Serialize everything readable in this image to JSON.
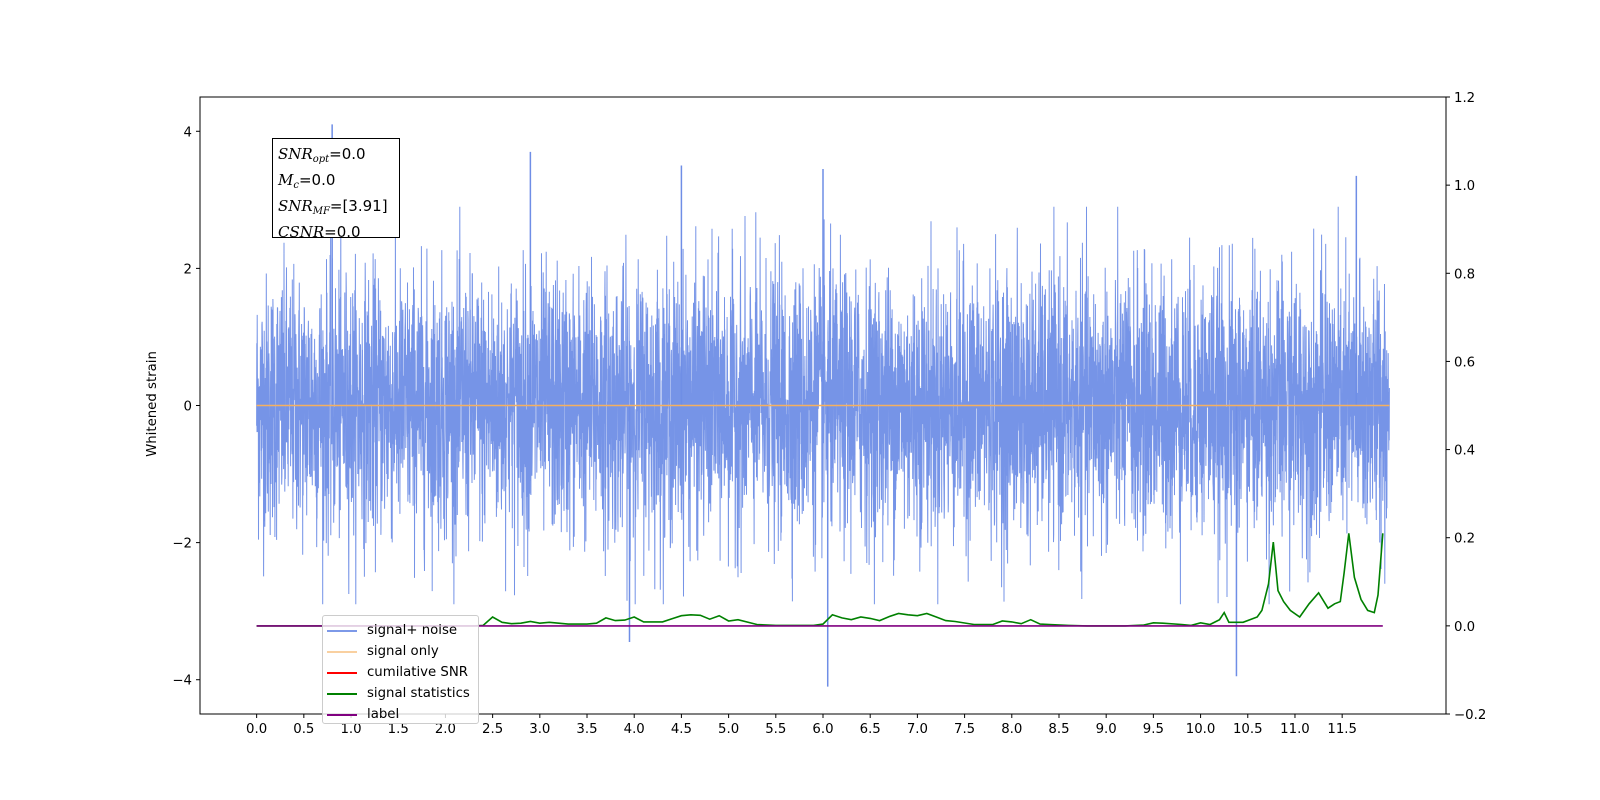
{
  "chart_data": {
    "type": "line",
    "title": "",
    "xlabel": "",
    "ylabel": "Whitened strain",
    "xlim": [
      -0.6,
      12.6
    ],
    "ylim": [
      -4.5,
      4.5
    ],
    "y2lim": [
      -0.2,
      1.2
    ],
    "x_ticks": [
      "0.0",
      "0.5",
      "1.0",
      "1.5",
      "2.0",
      "2.5",
      "3.0",
      "3.5",
      "4.0",
      "4.5",
      "5.0",
      "5.5",
      "6.0",
      "6.5",
      "7.0",
      "7.5",
      "8.0",
      "8.5",
      "9.0",
      "9.5",
      "10.0",
      "10.5",
      "11.0",
      "11.5"
    ],
    "y_ticks": [
      "4",
      "2",
      "0",
      "−2",
      "−4"
    ],
    "y2_ticks": [
      "1.2",
      "1.0",
      "0.8",
      "0.6",
      "0.4",
      "0.2",
      "0.0",
      "−0.2"
    ],
    "grid": false,
    "legend_position": "lower-left",
    "annotation": {
      "snr_opt": "=0.0",
      "mc": "=0.0",
      "snr_mf": "=[3.91]",
      "csnr": "=0.0"
    },
    "series": [
      {
        "name": "signal+ noise",
        "color": "#6f8ee6",
        "axis": "left",
        "x_range": [
          0.0,
          12.0
        ],
        "description": "whitened noise, amplitude roughly -2.5 to 2.5 with spikes",
        "peaks": [
          [
            0.8,
            4.1
          ],
          [
            2.9,
            3.7
          ],
          [
            4.5,
            3.5
          ],
          [
            6.0,
            3.45
          ],
          [
            11.65,
            3.35
          ],
          [
            6.05,
            -4.1
          ],
          [
            10.38,
            -3.95
          ],
          [
            3.95,
            -3.45
          ]
        ]
      },
      {
        "name": "signal only",
        "color": "#f5b060",
        "axis": "left",
        "x": [
          0.0,
          12.0
        ],
        "values": [
          0.0,
          0.0
        ]
      },
      {
        "name": "cumilative SNR",
        "color": "#ff0000",
        "axis": "right",
        "x": [],
        "values": []
      },
      {
        "name": "signal statistics",
        "color": "#008000",
        "axis": "right",
        "x": [
          0.0,
          0.5,
          1.0,
          1.5,
          2.0,
          2.3,
          2.4,
          2.5,
          2.6,
          2.7,
          2.8,
          2.9,
          3.0,
          3.1,
          3.3,
          3.5,
          3.6,
          3.7,
          3.8,
          3.9,
          4.0,
          4.1,
          4.3,
          4.4,
          4.5,
          4.6,
          4.7,
          4.8,
          4.9,
          5.0,
          5.1,
          5.3,
          5.5,
          5.7,
          5.9,
          6.0,
          6.1,
          6.2,
          6.3,
          6.4,
          6.5,
          6.6,
          6.7,
          6.8,
          6.9,
          7.0,
          7.1,
          7.2,
          7.3,
          7.4,
          7.6,
          7.8,
          7.9,
          8.0,
          8.1,
          8.2,
          8.3,
          8.4,
          8.6,
          8.8,
          9.0,
          9.2,
          9.4,
          9.5,
          9.6,
          9.8,
          9.9,
          10.0,
          10.1,
          10.2,
          10.25,
          10.3,
          10.45,
          10.55,
          10.6,
          10.65,
          10.72,
          10.77,
          10.82,
          10.88,
          10.95,
          11.05,
          11.15,
          11.25,
          11.35,
          11.42,
          11.48,
          11.52,
          11.57,
          11.63,
          11.7,
          11.77,
          11.84,
          11.88,
          11.93
        ],
        "values": [
          0.0,
          0.0,
          0.0,
          0.0,
          0.0,
          0.0,
          0.001,
          0.02,
          0.008,
          0.005,
          0.006,
          0.01,
          0.006,
          0.008,
          0.004,
          0.004,
          0.006,
          0.018,
          0.012,
          0.013,
          0.02,
          0.009,
          0.009,
          0.016,
          0.023,
          0.025,
          0.024,
          0.015,
          0.023,
          0.011,
          0.014,
          0.003,
          0.001,
          0.001,
          0.001,
          0.004,
          0.025,
          0.018,
          0.014,
          0.02,
          0.017,
          0.012,
          0.021,
          0.028,
          0.025,
          0.023,
          0.028,
          0.02,
          0.012,
          0.01,
          0.003,
          0.003,
          0.011,
          0.009,
          0.005,
          0.014,
          0.004,
          0.003,
          0.001,
          0.0,
          0.0,
          0.0,
          0.002,
          0.007,
          0.006,
          0.003,
          0.001,
          0.007,
          0.003,
          0.014,
          0.03,
          0.008,
          0.008,
          0.016,
          0.02,
          0.035,
          0.095,
          0.19,
          0.08,
          0.055,
          0.035,
          0.02,
          0.05,
          0.075,
          0.04,
          0.05,
          0.055,
          0.12,
          0.21,
          0.11,
          0.06,
          0.035,
          0.03,
          0.07,
          0.21
        ]
      },
      {
        "name": "label",
        "color": "#800080",
        "axis": "right",
        "x": [
          0.0,
          11.93
        ],
        "values": [
          0.0,
          0.0
        ]
      }
    ],
    "legend_entries": [
      {
        "label": "signal+ noise",
        "color": "#6f8ee6",
        "alpha": 0.9
      },
      {
        "label": "signal only",
        "color": "#f5b060",
        "alpha": 0.6
      },
      {
        "label": "cumilative SNR",
        "color": "#ff0000",
        "alpha": 1
      },
      {
        "label": "signal statistics",
        "color": "#008000",
        "alpha": 1
      },
      {
        "label": "label",
        "color": "#800080",
        "alpha": 1
      }
    ],
    "hidden_legend_text": "cumilative SNR"
  }
}
